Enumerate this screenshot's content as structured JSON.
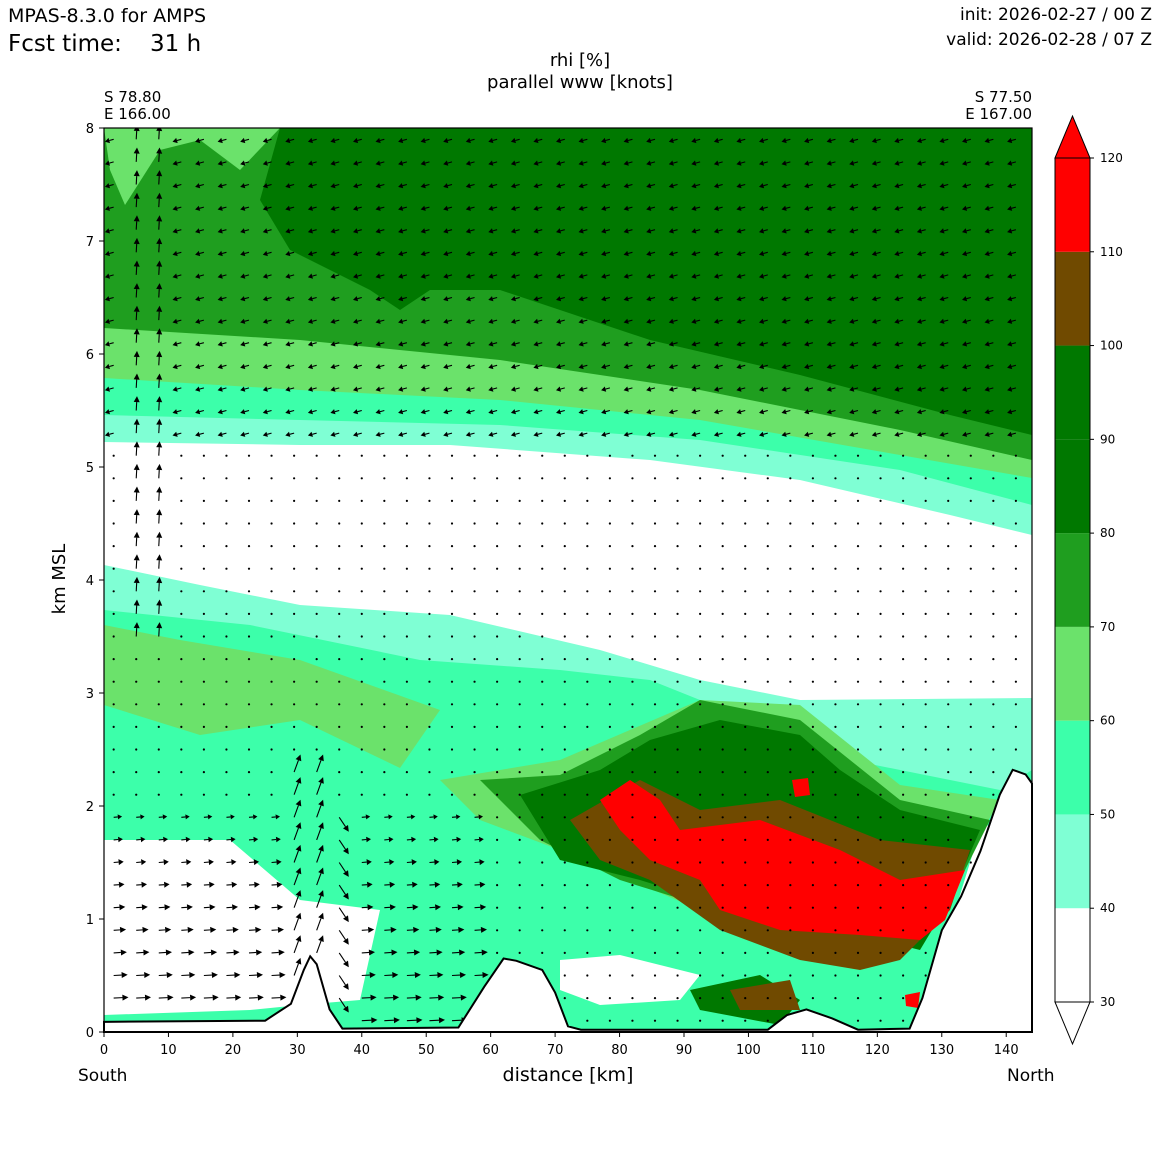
{
  "header": {
    "model": "MPAS-8.3.0 for AMPS",
    "fcst_label": "Fcst time:",
    "fcst_value": "31 h",
    "init": "init: 2026-02-27 / 00 Z",
    "valid": "valid: 2026-02-28 / 07 Z"
  },
  "chart_data": {
    "type": "contour",
    "title": "rhi [%]",
    "subtitle": "parallel www [knots]",
    "xlabel": "distance [km]",
    "ylabel": "km MSL",
    "xlim": [
      0,
      144
    ],
    "ylim": [
      0,
      8
    ],
    "x_ticks": [
      "0",
      "10",
      "20",
      "30",
      "40",
      "50",
      "60",
      "70",
      "80",
      "90",
      "100",
      "110",
      "120",
      "130",
      "140"
    ],
    "y_ticks": [
      "0",
      "1",
      "2",
      "3",
      "4",
      "5",
      "6",
      "7",
      "8"
    ],
    "left_end": {
      "lat": "S 78.80",
      "lon": "E 166.00",
      "direction": "South"
    },
    "right_end": {
      "lat": "S 77.50",
      "lon": "E 167.00",
      "direction": "North"
    },
    "colorbar": {
      "levels": [
        30,
        40,
        50,
        60,
        70,
        80,
        90,
        100,
        110,
        120
      ],
      "labels": [
        "30",
        "40",
        "50",
        "60",
        "70",
        "80",
        "90",
        "100",
        "110",
        "120"
      ],
      "colors": [
        "#ffffff",
        "#7fffd4",
        "#3cffaa",
        "#6be26b",
        "#1f9e1f",
        "#007800",
        "#007800",
        "#704a00",
        "#ff0000"
      ],
      "extend": "both"
    },
    "terrain_km": [
      [
        0,
        0.09
      ],
      [
        25,
        0.1
      ],
      [
        29,
        0.25
      ],
      [
        31,
        0.55
      ],
      [
        32,
        0.67
      ],
      [
        33,
        0.6
      ],
      [
        35,
        0.2
      ],
      [
        37,
        0.03
      ],
      [
        55,
        0.04
      ],
      [
        59,
        0.4
      ],
      [
        62,
        0.65
      ],
      [
        64,
        0.63
      ],
      [
        68,
        0.55
      ],
      [
        70,
        0.35
      ],
      [
        72,
        0.05
      ],
      [
        74,
        0.02
      ],
      [
        103,
        0.02
      ],
      [
        106,
        0.15
      ],
      [
        109,
        0.2
      ],
      [
        113,
        0.12
      ],
      [
        117,
        0.02
      ],
      [
        125,
        0.03
      ],
      [
        127,
        0.3
      ],
      [
        130,
        0.9
      ],
      [
        133,
        1.2
      ],
      [
        136,
        1.6
      ],
      [
        139,
        2.1
      ],
      [
        141,
        2.32
      ],
      [
        143,
        2.28
      ],
      [
        144,
        2.2
      ]
    ],
    "wind_vectors": {
      "convergent_zone_km": [
        28,
        40
      ],
      "strong_flow_below_km": 2.0
    }
  }
}
